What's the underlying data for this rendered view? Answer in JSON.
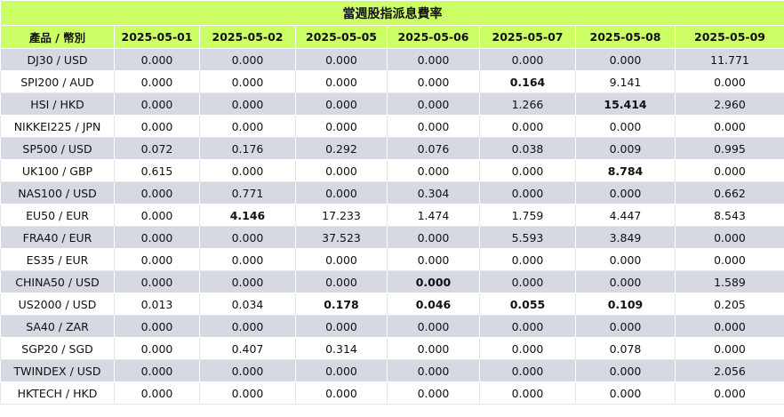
{
  "title": "當週股指派息費率",
  "product_header": "產品 / 幣別",
  "dates": [
    "2025-05-01",
    "2025-05-02",
    "2025-05-05",
    "2025-05-06",
    "2025-05-07",
    "2025-05-08",
    "2025-05-09"
  ],
  "rows": [
    {
      "product": "DJ30 / USD",
      "values": [
        "0.000",
        "0.000",
        "0.000",
        "0.000",
        "0.000",
        "0.000",
        "11.771"
      ],
      "bold": []
    },
    {
      "product": "SPI200 / AUD",
      "values": [
        "0.000",
        "0.000",
        "0.000",
        "0.000",
        "0.164",
        "9.141",
        "0.000"
      ],
      "bold": [
        4
      ]
    },
    {
      "product": "HSI / HKD",
      "values": [
        "0.000",
        "0.000",
        "0.000",
        "0.000",
        "1.266",
        "15.414",
        "2.960"
      ],
      "bold": [
        5
      ]
    },
    {
      "product": "NIKKEI225 / JPN",
      "values": [
        "0.000",
        "0.000",
        "0.000",
        "0.000",
        "0.000",
        "0.000",
        "0.000"
      ],
      "bold": []
    },
    {
      "product": "SP500 / USD",
      "values": [
        "0.072",
        "0.176",
        "0.292",
        "0.076",
        "0.038",
        "0.009",
        "0.995"
      ],
      "bold": []
    },
    {
      "product": "UK100 / GBP",
      "values": [
        "0.615",
        "0.000",
        "0.000",
        "0.000",
        "0.000",
        "8.784",
        "0.000"
      ],
      "bold": [
        5
      ]
    },
    {
      "product": "NAS100 / USD",
      "values": [
        "0.000",
        "0.771",
        "0.000",
        "0.304",
        "0.000",
        "0.000",
        "0.662"
      ],
      "bold": []
    },
    {
      "product": "EU50 / EUR",
      "values": [
        "0.000",
        "4.146",
        "17.233",
        "1.474",
        "1.759",
        "4.447",
        "8.543"
      ],
      "bold": [
        1
      ]
    },
    {
      "product": "FRA40 / EUR",
      "values": [
        "0.000",
        "0.000",
        "37.523",
        "0.000",
        "5.593",
        "3.849",
        "0.000"
      ],
      "bold": []
    },
    {
      "product": "ES35 / EUR",
      "values": [
        "0.000",
        "0.000",
        "0.000",
        "0.000",
        "0.000",
        "0.000",
        "0.000"
      ],
      "bold": []
    },
    {
      "product": "CHINA50 / USD",
      "values": [
        "0.000",
        "0.000",
        "0.000",
        "0.000",
        "0.000",
        "0.000",
        "1.589"
      ],
      "bold": [
        3
      ]
    },
    {
      "product": "US2000 / USD",
      "values": [
        "0.013",
        "0.034",
        "0.178",
        "0.046",
        "0.055",
        "0.109",
        "0.205"
      ],
      "bold": [
        2,
        3,
        4,
        5
      ]
    },
    {
      "product": "SA40 / ZAR",
      "values": [
        "0.000",
        "0.000",
        "0.000",
        "0.000",
        "0.000",
        "0.000",
        "0.000"
      ],
      "bold": []
    },
    {
      "product": "SGP20 / SGD",
      "values": [
        "0.000",
        "0.407",
        "0.314",
        "0.000",
        "0.000",
        "0.078",
        "0.000"
      ],
      "bold": []
    },
    {
      "product": "TWINDEX / USD",
      "values": [
        "0.000",
        "0.000",
        "0.000",
        "0.000",
        "0.000",
        "0.000",
        "2.056"
      ],
      "bold": []
    },
    {
      "product": "HKTECH / HKD",
      "values": [
        "0.000",
        "0.000",
        "0.000",
        "0.000",
        "0.000",
        "0.000",
        "0.000"
      ],
      "bold": []
    }
  ]
}
